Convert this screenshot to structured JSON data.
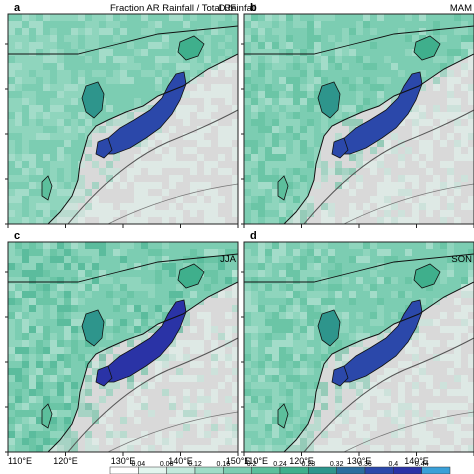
{
  "chart_data": {
    "type": "heatmap",
    "figure_title": "Fraction  AR Rainfall / Total Rainfall",
    "x_tick_labels": [
      "110°E",
      "120°E",
      "130°E",
      "140°E",
      "150°E"
    ],
    "colorbar": {
      "tick_labels": [
        "0.04",
        "0.08",
        "0.12",
        "0.16",
        "0.2",
        "0.24",
        "0.28",
        "0.32",
        "0.36",
        "0.4",
        "0.44"
      ],
      "colors": [
        "#ffffff",
        "#e2f5ee",
        "#c2e9dc",
        "#9fdcc7",
        "#7ccdb2",
        "#5cbf9c",
        "#3faf8c",
        "#2e958c",
        "#2b6e9e",
        "#2b48aa",
        "#2a33a6",
        "#3aa0d8"
      ]
    },
    "panels": [
      {
        "letter": "a",
        "season": "DJF",
        "intensity": 0.55
      },
      {
        "letter": "b",
        "season": "MAM",
        "intensity": 0.85
      },
      {
        "letter": "c",
        "season": "JJA",
        "intensity": 1.0
      },
      {
        "letter": "d",
        "season": "SON",
        "intensity": 0.8
      }
    ],
    "colors": {
      "land_mask": "#d9d9d9",
      "coast": "#111111"
    }
  }
}
